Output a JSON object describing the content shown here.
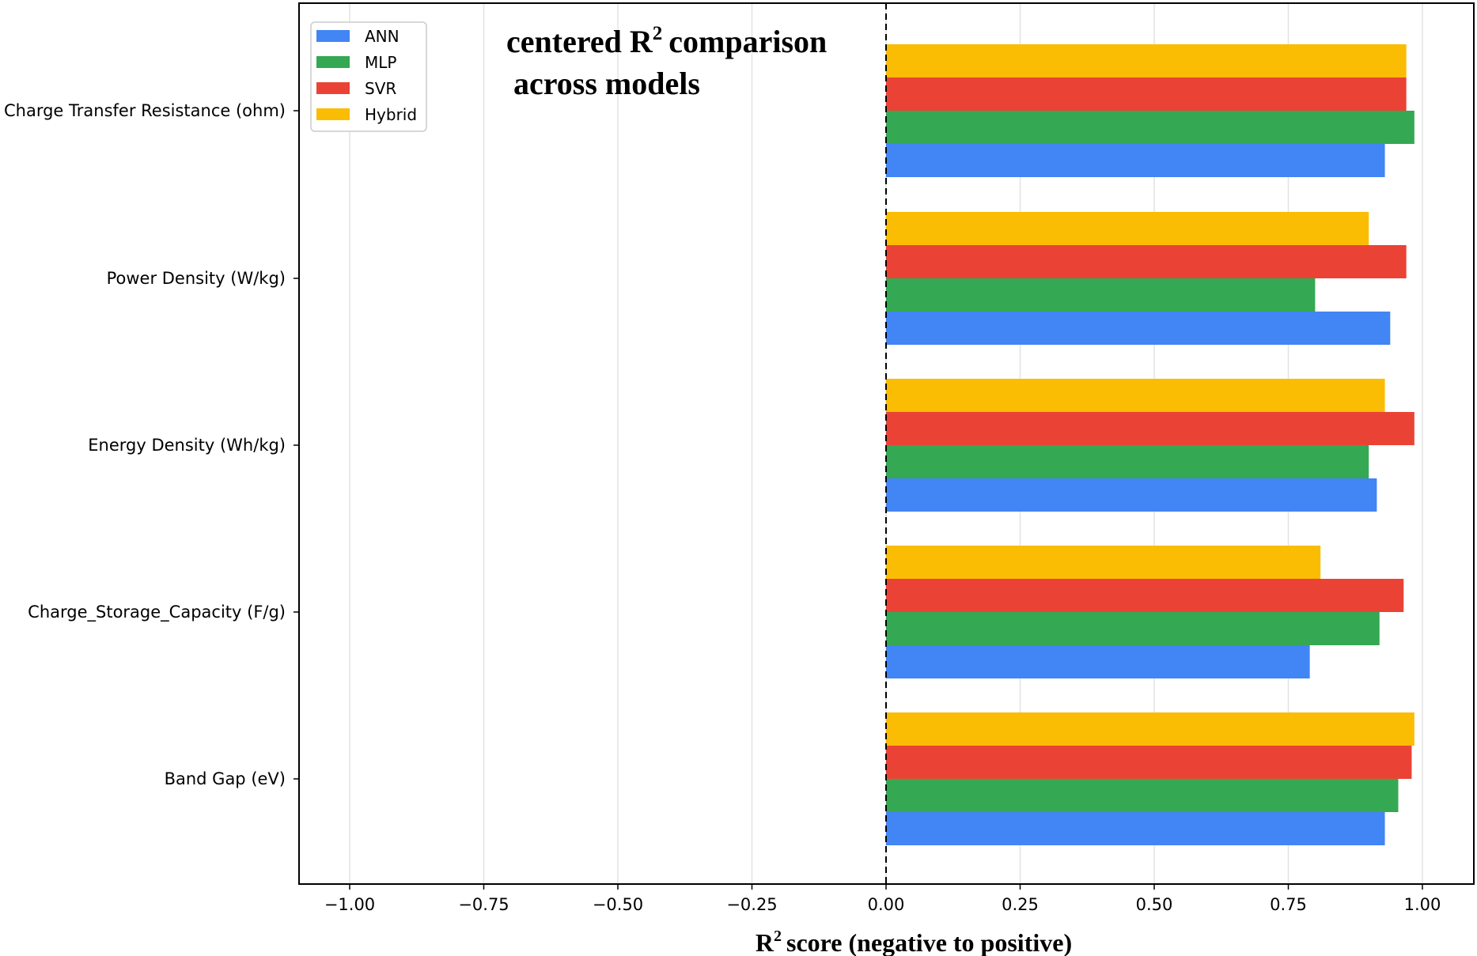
{
  "chart_data": {
    "type": "bar",
    "orientation": "horizontal",
    "title_lines": [
      "centered R",
      "comparison",
      "across models"
    ],
    "title_superscript": "2",
    "title": "centered R2 comparison across models",
    "xlabel_prefix": "R",
    "xlabel_superscript": "2",
    "xlabel_suffix": "score (negative to positive)",
    "xlabel": "R2 score (negative to positive)",
    "ylabel": "",
    "xlim": [
      -1.1,
      1.1
    ],
    "xticks": [
      -1.0,
      -0.75,
      -0.5,
      -0.25,
      0.0,
      0.25,
      0.5,
      0.75,
      1.0
    ],
    "xtick_labels": [
      "−1.00",
      "−0.75",
      "−0.50",
      "−0.25",
      "0.00",
      "0.25",
      "0.50",
      "0.75",
      "1.00"
    ],
    "grid": "vertical",
    "reference_line": 0.0,
    "legend_position": "top-left",
    "categories": [
      "Charge Transfer Resistance (ohm)",
      "Power Density (W/kg)",
      "Energy Density (Wh/kg)",
      "Charge_Storage_Capacity (F/g)",
      "Band Gap (eV)"
    ],
    "series": [
      {
        "name": "ANN",
        "color": "#4285f4",
        "values": [
          0.93,
          0.94,
          0.915,
          0.79,
          0.93
        ]
      },
      {
        "name": "MLP",
        "color": "#34a853",
        "values": [
          0.985,
          0.8,
          0.9,
          0.92,
          0.955
        ]
      },
      {
        "name": "SVR",
        "color": "#ea4335",
        "values": [
          0.97,
          0.97,
          0.985,
          0.965,
          0.98
        ]
      },
      {
        "name": "Hybrid",
        "color": "#fbbc04",
        "values": [
          0.97,
          0.9,
          0.93,
          0.81,
          0.985
        ]
      }
    ]
  }
}
